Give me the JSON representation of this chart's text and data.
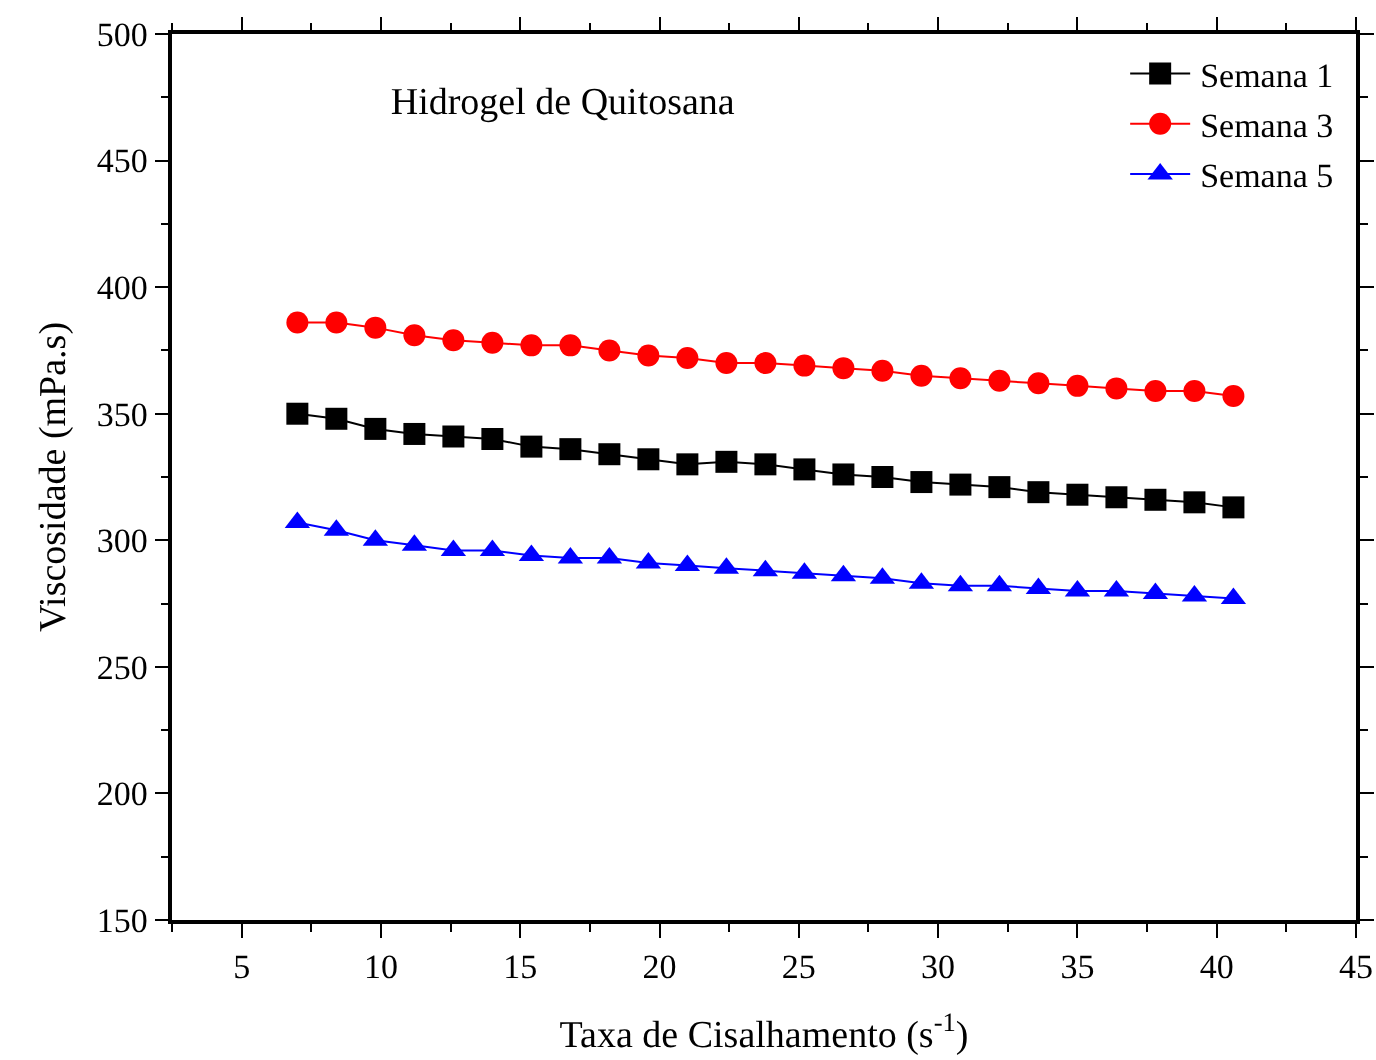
{
  "chart_data": {
    "type": "line",
    "title": "Hidrogel de Quitosana",
    "xlabel": "Taxa de Cisalhamento (s$^{-1}$)",
    "ylabel": "Viscosidade (mPa.s)",
    "x": [
      7,
      8.4,
      9.8,
      11.2,
      12.6,
      14,
      15.4,
      16.8,
      18.2,
      19.6,
      21,
      22.4,
      23.8,
      25.2,
      26.6,
      28,
      29.4,
      30.8,
      32.2,
      33.6,
      35,
      36.4,
      37.8,
      39.2,
      40.6
    ],
    "series": [
      {
        "name": "Semana 1",
        "color": "#000000",
        "marker": "square",
        "values": [
          350,
          348,
          344,
          342,
          341,
          340,
          337,
          336,
          334,
          332,
          330,
          331,
          330,
          328,
          326,
          325,
          323,
          322,
          321,
          319,
          318,
          317,
          316,
          315,
          313
        ]
      },
      {
        "name": "Semana 3",
        "color": "#ff0000",
        "marker": "circle",
        "values": [
          386,
          386,
          384,
          381,
          379,
          378,
          377,
          377,
          375,
          373,
          372,
          370,
          370,
          369,
          368,
          367,
          365,
          364,
          363,
          362,
          361,
          360,
          359,
          359,
          357
        ]
      },
      {
        "name": "Semana 5",
        "color": "#0000ff",
        "marker": "triangle",
        "values": [
          307,
          304,
          300,
          298,
          296,
          296,
          294,
          293,
          293,
          291,
          290,
          289,
          288,
          287,
          286,
          285,
          283,
          282,
          282,
          281,
          280,
          280,
          279,
          278,
          277
        ]
      }
    ],
    "xlim": [
      2.5,
      45
    ],
    "xticks": [
      5,
      10,
      15,
      20,
      25,
      30,
      35,
      40,
      45
    ],
    "ylim": [
      150,
      500
    ],
    "yticks": [
      150,
      200,
      250,
      300,
      350,
      400,
      450,
      500
    ],
    "grid": false,
    "legend": "top right",
    "line_style": "solid"
  }
}
